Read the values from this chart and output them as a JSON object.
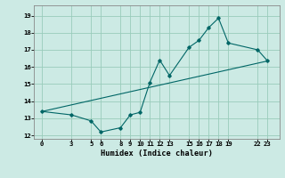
{
  "xlabel": "Humidex (Indice chaleur)",
  "ylabel": "",
  "bg_color": "#cceae4",
  "grid_color": "#99ccbb",
  "line_color": "#006666",
  "xlim": [
    -0.8,
    24.2
  ],
  "ylim": [
    11.8,
    19.6
  ],
  "xticks": [
    0,
    3,
    5,
    6,
    8,
    9,
    10,
    11,
    12,
    13,
    15,
    16,
    17,
    18,
    19,
    22,
    23
  ],
  "yticks": [
    12,
    13,
    14,
    15,
    16,
    17,
    18,
    19
  ],
  "data_x": [
    0,
    3,
    5,
    6,
    8,
    9,
    10,
    11,
    12,
    13,
    15,
    16,
    17,
    18,
    19,
    22,
    23
  ],
  "data_y": [
    13.4,
    13.2,
    12.85,
    12.2,
    12.45,
    13.2,
    13.35,
    15.1,
    16.4,
    15.5,
    17.15,
    17.55,
    18.3,
    18.85,
    17.4,
    17.0,
    16.35
  ],
  "trend_x": [
    0,
    23
  ],
  "trend_y": [
    13.4,
    16.35
  ]
}
